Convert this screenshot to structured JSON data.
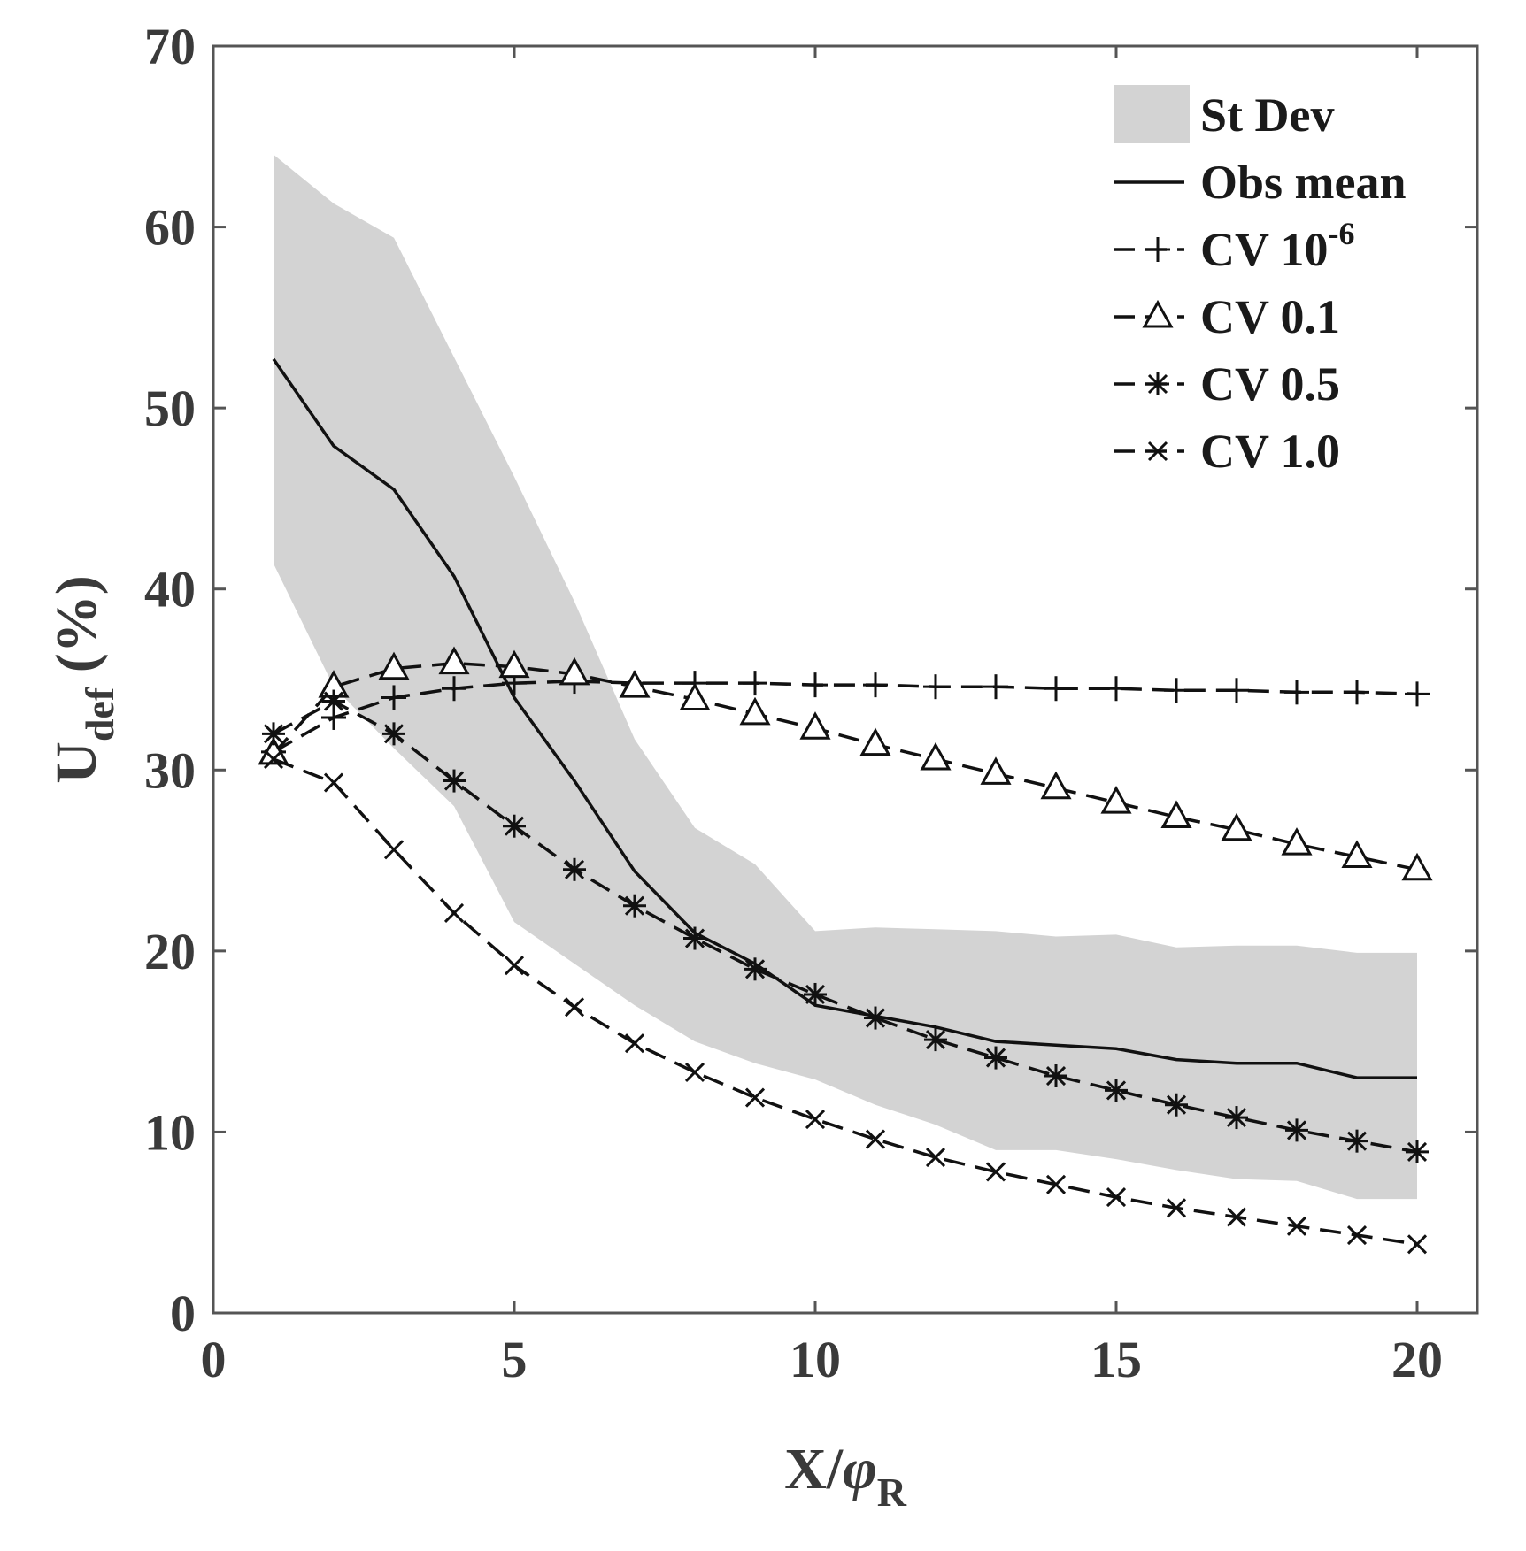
{
  "chart_data": {
    "type": "line",
    "title": "",
    "xlabel": {
      "main": "X/",
      "symbol": "φ",
      "sub": "R"
    },
    "ylabel": {
      "main": "U",
      "sub": "def",
      "suffix": " (%)"
    },
    "xlim": [
      0,
      21
    ],
    "ylim": [
      0,
      70
    ],
    "xticks": [
      0,
      5,
      10,
      15,
      20
    ],
    "yticks": [
      0,
      10,
      20,
      30,
      40,
      50,
      60,
      70
    ],
    "x": [
      1,
      2,
      3,
      4,
      5,
      6,
      7,
      8,
      9,
      10,
      11,
      12,
      13,
      14,
      15,
      16,
      17,
      18,
      19,
      20
    ],
    "legend_position": "top-right",
    "band": {
      "name": "St Dev",
      "color": "#d3d3d3",
      "upper": [
        64.0,
        61.3,
        59.4,
        52.8,
        46.2,
        39.3,
        31.7,
        26.8,
        24.8,
        21.1,
        21.3,
        21.2,
        21.1,
        20.8,
        20.9,
        20.2,
        20.3,
        20.3,
        19.9,
        19.9
      ],
      "lower": [
        41.4,
        34.6,
        31.2,
        28.0,
        21.6,
        19.3,
        17.0,
        15.0,
        13.8,
        12.9,
        11.5,
        10.4,
        9.0,
        9.0,
        8.5,
        7.9,
        7.4,
        7.3,
        6.3,
        6.3
      ]
    },
    "series": [
      {
        "name": "Obs mean",
        "marker": "none",
        "dashed": false,
        "values": [
          52.7,
          47.9,
          45.5,
          40.7,
          34.0,
          29.4,
          24.4,
          21.0,
          19.3,
          17.0,
          16.4,
          15.8,
          15.0,
          14.8,
          14.6,
          14.0,
          13.8,
          13.8,
          13.0,
          13.0
        ]
      },
      {
        "name": "CV 10",
        "name_sup": "-6",
        "marker": "plus",
        "dashed": true,
        "values": [
          31.0,
          32.9,
          34.0,
          34.5,
          34.8,
          34.9,
          34.8,
          34.8,
          34.8,
          34.7,
          34.7,
          34.6,
          34.6,
          34.5,
          34.5,
          34.4,
          34.4,
          34.3,
          34.3,
          34.2
        ]
      },
      {
        "name": "CV 0.1",
        "marker": "triangle",
        "dashed": true,
        "values": [
          30.9,
          34.6,
          35.6,
          35.9,
          35.7,
          35.3,
          34.6,
          33.9,
          33.1,
          32.3,
          31.4,
          30.6,
          29.8,
          29.0,
          28.2,
          27.4,
          26.7,
          25.9,
          25.2,
          24.5
        ]
      },
      {
        "name": "CV 0.5",
        "marker": "star",
        "dashed": true,
        "values": [
          32.0,
          33.8,
          32.0,
          29.4,
          26.9,
          24.5,
          22.5,
          20.7,
          19.0,
          17.6,
          16.3,
          15.1,
          14.1,
          13.1,
          12.3,
          11.5,
          10.8,
          10.1,
          9.5,
          8.9
        ]
      },
      {
        "name": "CV 1.0",
        "marker": "x",
        "dashed": true,
        "values": [
          30.6,
          29.3,
          25.6,
          22.1,
          19.2,
          16.9,
          14.9,
          13.3,
          11.9,
          10.7,
          9.6,
          8.6,
          7.8,
          7.1,
          6.4,
          5.8,
          5.3,
          4.8,
          4.3,
          3.8
        ]
      }
    ]
  }
}
